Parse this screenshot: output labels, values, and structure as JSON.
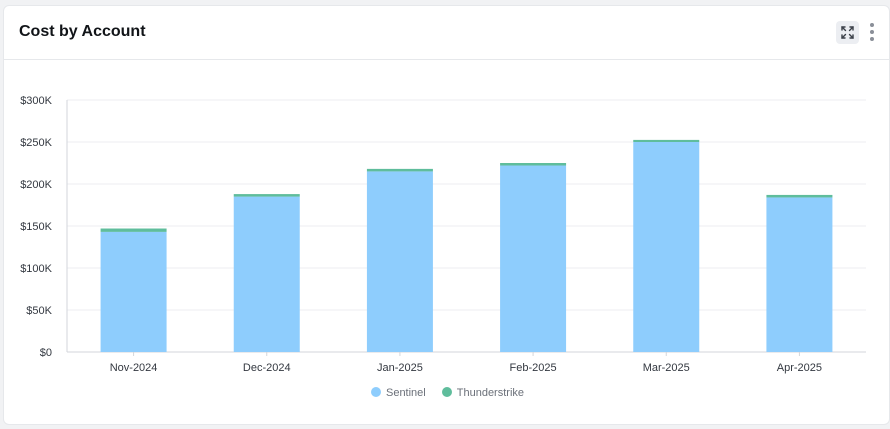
{
  "header": {
    "title": "Cost by Account"
  },
  "icons": {
    "expand": "expand-icon",
    "more": "more-vertical-icon"
  },
  "chart_data": {
    "type": "bar",
    "stacked": true,
    "title": "Cost by Account",
    "xlabel": "",
    "ylabel": "",
    "categories": [
      "Nov-2024",
      "Dec-2024",
      "Jan-2025",
      "Feb-2025",
      "Mar-2025",
      "Apr-2025"
    ],
    "series": [
      {
        "name": "Sentinel",
        "color": "#8ecdfd",
        "values": [
          143000,
          185000,
          215000,
          222000,
          250000,
          184000
        ]
      },
      {
        "name": "Thunderstrike",
        "color": "#5fbd9c",
        "values": [
          4000,
          3000,
          3000,
          3000,
          2500,
          3000
        ]
      }
    ],
    "y_ticks": [
      "$0",
      "$50K",
      "$100K",
      "$150K",
      "$200K",
      "$250K",
      "$300K"
    ],
    "ylim": [
      0,
      300000
    ],
    "grid": true,
    "legend_position": "bottom"
  }
}
